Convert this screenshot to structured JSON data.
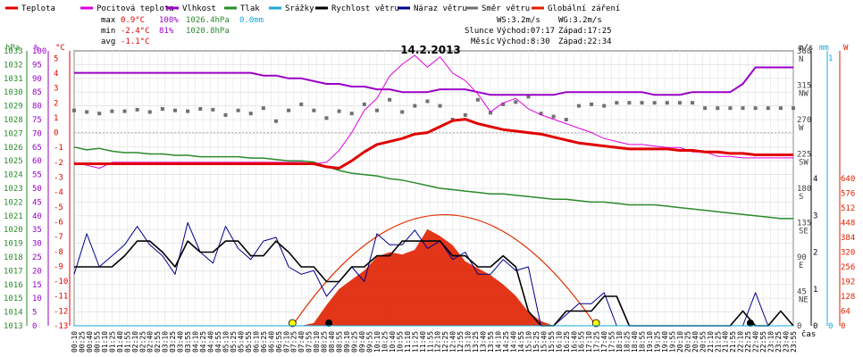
{
  "chart_data": {
    "type": "line",
    "title": "14.2.2013",
    "legend": [
      {
        "name": "Teplota",
        "color": "#e00000"
      },
      {
        "name": "Pocitová teplota",
        "color": "#e000e0"
      },
      {
        "name": "Vlhkost",
        "color": "#9a00c8"
      },
      {
        "name": "Tlak",
        "color": "#2a8a2a"
      },
      {
        "name": "Srážky",
        "color": "#18a8d8"
      },
      {
        "name": "Rychlost větru",
        "color": "#000000"
      },
      {
        "name": "Náraz větru",
        "color": "#00008b"
      },
      {
        "name": "Směr větru",
        "color": "#707070"
      },
      {
        "name": "Globální záření",
        "color": "#e02000"
      }
    ],
    "stats": {
      "max": {
        "label": "max",
        "temp": "0.9°C",
        "hum": "100%",
        "press": "1026.4hPa",
        "rain": "0.0mm"
      },
      "min": {
        "label": "min",
        "temp": "-2.4°C",
        "hum": "81%",
        "press": "1020.8hPa"
      },
      "avg": {
        "label": "avg",
        "temp": "-1.1°C"
      }
    },
    "info": {
      "ws": "WS:3.2m/s",
      "wg": "WG:3.2m/s",
      "sun": "Slunce",
      "sunrise": "Východ:07:17",
      "sunset": "Západ:17:25",
      "moon": "Měsíc",
      "moonrise": "Východ:8:30",
      "moonset": "Západ:22:34"
    },
    "axes": {
      "hpa": {
        "unit": "hPa",
        "ticks": [
          1013,
          1014,
          1015,
          1016,
          1017,
          1018,
          1019,
          1020,
          1021,
          1022,
          1023,
          1024,
          1025,
          1026,
          1027,
          1028,
          1029,
          1030,
          1031,
          1032,
          1033
        ]
      },
      "pct": {
        "unit": "%",
        "ticks": [
          0,
          5,
          10,
          15,
          20,
          25,
          30,
          35,
          40,
          45,
          50,
          55,
          60,
          65,
          70,
          75,
          80,
          85,
          90,
          95,
          100
        ]
      },
      "degc": {
        "unit": "°C",
        "ticks": [
          -13,
          -12,
          -11,
          -10,
          -9,
          -8,
          -7,
          -6,
          -5,
          -4,
          -3,
          -2,
          -1,
          0,
          1,
          2,
          3,
          4,
          5
        ],
        "ylim": [
          -13,
          5.5
        ]
      },
      "dir": {
        "ticks": [
          {
            "v": 0,
            "t": "0"
          },
          {
            "v": 45,
            "t": "45\nNE"
          },
          {
            "v": 90,
            "t": "90\nE"
          },
          {
            "v": 135,
            "t": "135\nSE"
          },
          {
            "v": 180,
            "t": "180\nS"
          },
          {
            "v": 225,
            "t": "225\nSW"
          },
          {
            "v": 270,
            "t": "270\nW"
          },
          {
            "v": 315,
            "t": "315\nNW"
          },
          {
            "v": 360,
            "t": "360\nN"
          }
        ]
      },
      "ms": {
        "unit": "m/s",
        "ticks": [
          0,
          1,
          2,
          3,
          4
        ]
      },
      "mm": {
        "unit": "mm",
        "ticks": [
          0,
          1
        ]
      },
      "wm2": {
        "unit": "W",
        "ticks": [
          0,
          64,
          128,
          192,
          256,
          320,
          384,
          448,
          512,
          576,
          640
        ]
      },
      "time_label": "čas"
    },
    "x": [
      "00:00",
      "00:25",
      "00:50",
      "01:15",
      "01:40",
      "02:05",
      "02:30",
      "02:55",
      "03:20",
      "03:45",
      "04:10",
      "04:35",
      "05:00",
      "05:25",
      "05:50",
      "06:15",
      "06:40",
      "07:05",
      "07:30",
      "07:55",
      "08:20",
      "08:45",
      "09:10",
      "09:35",
      "10:00",
      "10:25",
      "10:50",
      "11:15",
      "11:40",
      "12:05",
      "12:30",
      "12:55",
      "13:20",
      "13:45",
      "14:10",
      "14:35",
      "15:00",
      "15:25",
      "15:50",
      "16:15",
      "16:40",
      "17:05",
      "17:30",
      "17:55",
      "18:20",
      "18:45",
      "19:10",
      "19:35",
      "20:00",
      "20:25",
      "20:50",
      "21:15",
      "21:40",
      "22:05",
      "22:30",
      "22:55",
      "23:20",
      "23:45"
    ],
    "x_ticks": [
      "00:10",
      "00:25",
      "00:40",
      "00:55",
      "01:10",
      "01:25",
      "01:40",
      "01:55",
      "02:10",
      "02:25",
      "02:40",
      "02:55",
      "03:10",
      "03:25",
      "03:40",
      "03:55",
      "04:10",
      "04:25",
      "04:40",
      "04:55",
      "05:10",
      "05:25",
      "05:40",
      "05:55",
      "06:10",
      "06:25",
      "06:40",
      "06:55",
      "07:10",
      "07:25",
      "07:40",
      "07:55",
      "08:10",
      "08:25",
      "08:40",
      "08:55",
      "09:10",
      "09:25",
      "09:40",
      "09:55",
      "10:10",
      "10:25",
      "10:40",
      "10:55",
      "11:10",
      "11:25",
      "11:40",
      "11:55",
      "12:10",
      "12:25",
      "12:40",
      "12:55",
      "13:10",
      "13:25",
      "13:40",
      "13:55",
      "14:10",
      "14:25",
      "14:40",
      "14:55",
      "15:10",
      "15:25",
      "15:40",
      "15:55",
      "16:10",
      "16:25",
      "16:40",
      "16:55",
      "17:10",
      "17:25",
      "17:40",
      "17:55",
      "18:10",
      "18:25",
      "18:40",
      "18:55",
      "19:10",
      "19:25",
      "19:40",
      "19:55",
      "20:10",
      "20:25",
      "20:40",
      "20:55",
      "21:10",
      "21:25",
      "21:40",
      "21:55",
      "22:10",
      "22:25",
      "22:40",
      "22:55",
      "23:10",
      "23:25",
      "23:40",
      "23:55"
    ],
    "series": [
      {
        "name": "Teplota",
        "values": [
          -2.1,
          -2.1,
          -2.1,
          -2.1,
          -2.1,
          -2.1,
          -2.1,
          -2.1,
          -2.1,
          -2.1,
          -2.1,
          -2.1,
          -2.1,
          -2.1,
          -2.1,
          -2.1,
          -2.1,
          -2.1,
          -2.1,
          -2.1,
          -2.3,
          -2.4,
          -1.9,
          -1.3,
          -0.8,
          -0.6,
          -0.4,
          -0.1,
          0.0,
          0.4,
          0.8,
          0.9,
          0.6,
          0.4,
          0.2,
          0.1,
          0.0,
          -0.1,
          -0.3,
          -0.5,
          -0.7,
          -0.8,
          -0.9,
          -1.0,
          -1.1,
          -1.1,
          -1.1,
          -1.1,
          -1.2,
          -1.2,
          -1.3,
          -1.3,
          -1.4,
          -1.4,
          -1.5,
          -1.5,
          -1.5,
          -1.5
        ]
      },
      {
        "name": "Pocitová teplota",
        "values": [
          -2.0,
          -2.2,
          -2.4,
          -2.0,
          -2.0,
          -2.0,
          -2.0,
          -2.0,
          -2.0,
          -2.0,
          -2.0,
          -2.0,
          -2.0,
          -2.0,
          -2.0,
          -2.0,
          -2.0,
          -2.0,
          -2.0,
          -2.1,
          -2.0,
          -1.2,
          0.0,
          1.5,
          2.3,
          3.8,
          4.6,
          5.2,
          4.4,
          5.1,
          4.0,
          3.5,
          2.6,
          1.4,
          2.0,
          2.3,
          1.6,
          1.2,
          0.9,
          0.6,
          0.3,
          0.0,
          -0.4,
          -0.6,
          -0.8,
          -0.8,
          -0.9,
          -1.0,
          -1.0,
          -1.3,
          -1.3,
          -1.6,
          -1.6,
          -1.7,
          -1.7,
          -1.7,
          -1.7,
          -1.7
        ]
      },
      {
        "name": "Vlhkost",
        "values": [
          92,
          92,
          92,
          92,
          92,
          92,
          92,
          92,
          92,
          92,
          92,
          92,
          92,
          92,
          92,
          91,
          91,
          90,
          90,
          89,
          88,
          88,
          87,
          87,
          86,
          86,
          85,
          85,
          85,
          86,
          86,
          86,
          85,
          84,
          84,
          84,
          84,
          84,
          84,
          85,
          85,
          85,
          85,
          85,
          85,
          85,
          84,
          84,
          84,
          85,
          85,
          85,
          85,
          88,
          94,
          94,
          94,
          94
        ]
      },
      {
        "name": "Tlak",
        "values": [
          1026.0,
          1025.8,
          1025.9,
          1025.7,
          1025.6,
          1025.6,
          1025.5,
          1025.5,
          1025.4,
          1025.4,
          1025.3,
          1025.3,
          1025.3,
          1025.3,
          1025.2,
          1025.2,
          1025.1,
          1025.0,
          1025.0,
          1024.9,
          1024.6,
          1024.3,
          1024.1,
          1024.0,
          1023.9,
          1023.7,
          1023.6,
          1023.4,
          1023.2,
          1023.0,
          1022.9,
          1022.8,
          1022.7,
          1022.6,
          1022.6,
          1022.5,
          1022.4,
          1022.3,
          1022.2,
          1022.2,
          1022.1,
          1022.0,
          1022.0,
          1021.9,
          1021.8,
          1021.8,
          1021.8,
          1021.7,
          1021.6,
          1021.5,
          1021.4,
          1021.3,
          1021.2,
          1021.1,
          1021.0,
          1020.9,
          1020.8,
          1020.8
        ]
      },
      {
        "name": "Srážky",
        "values": [
          0,
          0,
          0,
          0,
          0,
          0,
          0,
          0,
          0,
          0,
          0,
          0,
          0,
          0,
          0,
          0,
          0,
          0,
          0,
          0,
          0,
          0,
          0,
          0,
          0,
          0,
          0,
          0,
          0,
          0,
          0,
          0,
          0,
          0,
          0,
          0,
          0,
          0,
          0,
          0,
          0,
          0,
          0,
          0,
          0,
          0,
          0,
          0,
          0,
          0,
          0,
          0,
          0,
          0,
          0,
          0,
          0,
          0
        ]
      },
      {
        "name": "Rychlost větru",
        "values": [
          1.6,
          1.6,
          1.6,
          1.6,
          1.9,
          2.3,
          2.3,
          2.0,
          1.6,
          2.3,
          2.0,
          2.0,
          2.3,
          2.3,
          1.9,
          1.9,
          2.3,
          2.0,
          1.6,
          1.6,
          1.2,
          1.2,
          1.6,
          1.6,
          1.9,
          1.9,
          2.3,
          2.3,
          2.3,
          2.3,
          1.9,
          1.9,
          1.6,
          1.6,
          1.9,
          1.6,
          0.4,
          0.0,
          0.0,
          0.4,
          0.4,
          0.4,
          0.8,
          0.8,
          0.0,
          0.0,
          0.0,
          0.0,
          0.0,
          0.0,
          0.0,
          0.0,
          0.0,
          0.4,
          0.0,
          0.0,
          0.4,
          0.0
        ]
      },
      {
        "name": "Náraz větru",
        "values": [
          1.4,
          2.5,
          1.6,
          1.9,
          2.2,
          2.7,
          2.2,
          1.9,
          1.4,
          2.8,
          2.0,
          1.7,
          2.7,
          2.1,
          1.8,
          2.3,
          2.4,
          1.6,
          1.4,
          1.5,
          0.8,
          1.2,
          1.6,
          1.2,
          2.5,
          2.2,
          2.2,
          2.6,
          2.1,
          2.3,
          1.8,
          2.0,
          1.4,
          1.4,
          1.8,
          1.5,
          1.6,
          0.0,
          0.0,
          0.3,
          0.6,
          0.6,
          0.9,
          0.0,
          0.0,
          0.0,
          0.0,
          0.0,
          0.0,
          0.0,
          0.0,
          0.0,
          0.0,
          0.0,
          0.9,
          0.0,
          0.0,
          0.0
        ]
      },
      {
        "name": "Směr větru",
        "values": [
          282,
          280,
          278,
          281,
          281,
          283,
          280,
          284,
          282,
          281,
          284,
          283,
          276,
          282,
          278,
          285,
          268,
          282,
          290,
          282,
          272,
          281,
          278,
          290,
          282,
          296,
          280,
          288,
          294,
          288,
          270,
          276,
          296,
          279,
          290,
          293,
          300,
          278,
          274,
          270,
          288,
          290,
          288,
          292,
          292,
          292,
          292,
          292,
          292,
          292,
          285,
          285,
          285,
          285,
          285,
          285,
          285,
          285
        ]
      },
      {
        "name": "Globální záření",
        "values": [
          0,
          0,
          0,
          0,
          0,
          0,
          0,
          0,
          0,
          0,
          0,
          0,
          0,
          0,
          0,
          0,
          0,
          0,
          0,
          12,
          90,
          160,
          200,
          240,
          300,
          320,
          310,
          330,
          420,
          390,
          350,
          280,
          250,
          220,
          180,
          130,
          60,
          20,
          0,
          0,
          0,
          0,
          0,
          0,
          0,
          0,
          0,
          0,
          0,
          0,
          0,
          0,
          0,
          0,
          0,
          0,
          0,
          0
        ]
      }
    ]
  }
}
